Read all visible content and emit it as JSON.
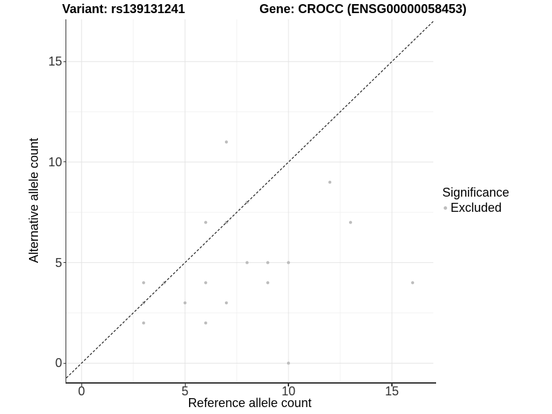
{
  "chart_data": {
    "type": "scatter",
    "titles": [
      "Variant: rs139131241",
      "Gene: CROCC (ENSG00000058453)"
    ],
    "xlabel": "Reference allele count",
    "ylabel": "Alternative allele count",
    "xlim": [
      -0.74,
      17.0
    ],
    "ylim": [
      -0.95,
      17.1
    ],
    "xticks": [
      0,
      5,
      10,
      15
    ],
    "yticks": [
      0,
      5,
      10,
      15
    ],
    "x_minor": [
      2.5,
      7.5,
      12.5
    ],
    "y_minor": [
      2.5,
      7.5,
      12.5
    ],
    "grid": "major+minor",
    "legend": {
      "title": "Significance",
      "position": "right",
      "items": [
        {
          "label": "Excluded",
          "color": "#bdbdbd"
        }
      ]
    },
    "series": [
      {
        "name": "Excluded",
        "color": "#bdbdbd",
        "points": [
          [
            3,
            2
          ],
          [
            3,
            3
          ],
          [
            3,
            4
          ],
          [
            4,
            4
          ],
          [
            5,
            3
          ],
          [
            6,
            2
          ],
          [
            6,
            4
          ],
          [
            6,
            7
          ],
          [
            7,
            3
          ],
          [
            7,
            7
          ],
          [
            7,
            11
          ],
          [
            8,
            5
          ],
          [
            8,
            8
          ],
          [
            9,
            4
          ],
          [
            9,
            5
          ],
          [
            10,
            0
          ],
          [
            10,
            5
          ],
          [
            12,
            9
          ],
          [
            13,
            7
          ],
          [
            16,
            4
          ]
        ]
      }
    ],
    "identity_line": {
      "slope": 1,
      "intercept": 0,
      "style": "dashed",
      "color": "#1a1a1a"
    }
  },
  "colors": {
    "background": "#ffffff",
    "point": "#bdbdbd",
    "grid_major": "#e4e4e4",
    "grid_minor": "#f2f2f2",
    "axis_line": "#333333",
    "tick_text": "#333333",
    "title_text": "#000000"
  }
}
